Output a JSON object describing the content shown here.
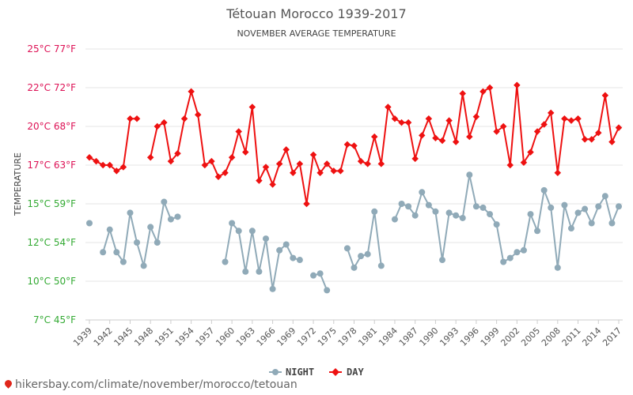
{
  "chart_data": {
    "type": "line",
    "title": "Tétouan Morocco 1939-2017",
    "subtitle": "NOVEMBER AVERAGE TEMPERATURE",
    "ylabel": "TEMPERATURE",
    "ylim": [
      7,
      25
    ],
    "xlim": [
      1939,
      2017
    ],
    "y_tick_labels": [
      {
        "c": 7,
        "label": "7°C 45°F",
        "color": "#33aa33"
      },
      {
        "c": 10,
        "label": "10°C 50°F",
        "color": "#33aa33"
      },
      {
        "c": 12,
        "label": "12°C 54°F",
        "color": "#33aa33"
      },
      {
        "c": 15,
        "label": "15°C 59°F",
        "color": "#33aa33"
      },
      {
        "c": 17,
        "label": "17°C 63°F",
        "color": "#dd1155"
      },
      {
        "c": 20,
        "label": "20°C 68°F",
        "color": "#dd1155"
      },
      {
        "c": 22,
        "label": "22°C 72°F",
        "color": "#dd1155"
      },
      {
        "c": 25,
        "label": "25°C 77°F",
        "color": "#dd1155"
      }
    ],
    "x_tick_labels": [
      "1939",
      "1942",
      "1945",
      "1948",
      "1951",
      "1954",
      "1957",
      "1960",
      "1963",
      "1966",
      "1969",
      "1972",
      "1975",
      "1978",
      "1981",
      "1984",
      "1987",
      "1990",
      "1993",
      "1996",
      "1999",
      "2002",
      "2005",
      "2008",
      "2011",
      "2014",
      "2017"
    ],
    "grid": true,
    "legend_position": "bottom-center",
    "series": [
      {
        "name": "NIGHT",
        "color": "#90aab8",
        "x": [
          1939,
          1940,
          1941,
          1942,
          1943,
          1944,
          1945,
          1946,
          1947,
          1948,
          1949,
          1950,
          1951,
          1952,
          1953,
          1954,
          1955,
          1956,
          1957,
          1958,
          1959,
          1960,
          1961,
          1962,
          1963,
          1964,
          1965,
          1966,
          1967,
          1968,
          1969,
          1970,
          1971,
          1972,
          1973,
          1974,
          1975,
          1976,
          1977,
          1978,
          1979,
          1980,
          1981,
          1982,
          1983,
          1984,
          1985,
          1986,
          1987,
          1988,
          1989,
          1990,
          1991,
          1992,
          1993,
          1994,
          1995,
          1996,
          1997,
          1998,
          1999,
          2000,
          2001,
          2002,
          2003,
          2004,
          2005,
          2006,
          2007,
          2008,
          2009,
          2010,
          2011,
          2012,
          2013,
          2014,
          2015,
          2016,
          2017
        ],
        "values": [
          13.5,
          null,
          11.5,
          13,
          11.5,
          11,
          14.3,
          12,
          10.8,
          13.2,
          12,
          15.1,
          13.8,
          14,
          null,
          null,
          null,
          null,
          null,
          null,
          11,
          13.5,
          12.9,
          10.5,
          12.9,
          10.5,
          12.3,
          9.4,
          11.6,
          11.9,
          11.2,
          11.1,
          null,
          10.3,
          10.4,
          9.3,
          null,
          null,
          11.7,
          10.7,
          11.3,
          11.4,
          14.4,
          10.8,
          null,
          13.8,
          15.0,
          14.8,
          14.1,
          15.6,
          14.9,
          14.4,
          11.1,
          14.3,
          14.1,
          13.9,
          16.5,
          14.8,
          14.7,
          14.2,
          13.4,
          11.0,
          11.2,
          11.5,
          11.6,
          14.2,
          12.9,
          15.7,
          14.7,
          10.7,
          14.9,
          13.1,
          14.3,
          14.6,
          13.5,
          14.8,
          15.4,
          13.5,
          14.8
        ]
      },
      {
        "name": "DAY",
        "color": "#ee1111",
        "x": [
          1939,
          1940,
          1941,
          1942,
          1943,
          1944,
          1945,
          1946,
          1947,
          1948,
          1949,
          1950,
          1951,
          1952,
          1953,
          1954,
          1955,
          1956,
          1957,
          1958,
          1959,
          1960,
          1961,
          1962,
          1963,
          1964,
          1965,
          1966,
          1967,
          1968,
          1969,
          1970,
          1971,
          1972,
          1973,
          1974,
          1975,
          1976,
          1977,
          1978,
          1979,
          1980,
          1981,
          1982,
          1983,
          1984,
          1985,
          1986,
          1987,
          1988,
          1989,
          1990,
          1991,
          1992,
          1993,
          1994,
          1995,
          1996,
          1997,
          1998,
          1999,
          2000,
          2001,
          2002,
          2003,
          2004,
          2005,
          2006,
          2007,
          2008,
          2009,
          2010,
          2011,
          2012,
          2013,
          2014,
          2015,
          2016,
          2017
        ],
        "values": [
          17.6,
          17.3,
          17.0,
          17.0,
          16.7,
          16.9,
          20.4,
          20.4,
          null,
          17.6,
          20.0,
          20.2,
          17.3,
          17.9,
          20.4,
          21.8,
          20.6,
          17.0,
          17.3,
          16.4,
          16.6,
          17.6,
          19.6,
          18.0,
          21.0,
          16.2,
          16.9,
          16.0,
          17.1,
          18.2,
          16.6,
          17.1,
          15.0,
          17.8,
          16.6,
          17.1,
          16.7,
          16.7,
          18.6,
          18.5,
          17.3,
          17.1,
          19.2,
          17.1,
          21.0,
          20.4,
          20.2,
          20.2,
          17.5,
          19.3,
          20.4,
          19.1,
          18.9,
          20.3,
          18.8,
          21.7,
          19.2,
          20.5,
          21.8,
          22.0,
          19.6,
          20.0,
          17.0,
          22.2,
          17.2,
          18.0,
          19.6,
          20.1,
          20.7,
          16.6,
          20.4,
          20.3,
          20.4,
          19.0,
          19.0,
          19.5,
          21.6,
          18.8,
          19.9
        ]
      }
    ]
  },
  "watermark": "hikersbay.com/climate/november/morocco/tetouan"
}
